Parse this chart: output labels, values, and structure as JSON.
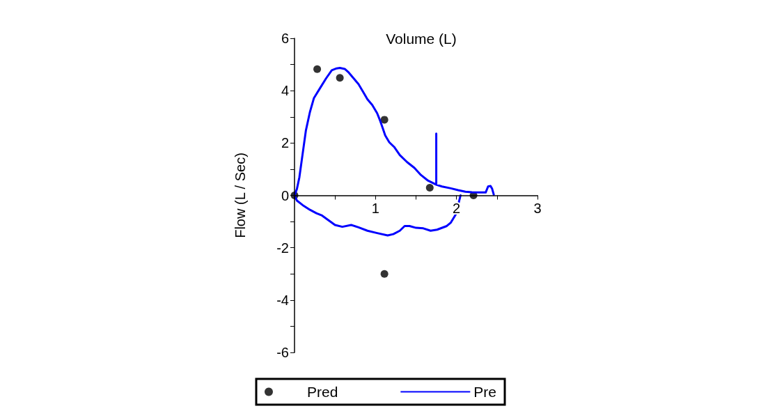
{
  "chart_data": {
    "type": "line",
    "xlabel": "Volume (L)",
    "ylabel": "Flow (L / Sec)",
    "xlim": [
      0,
      3
    ],
    "xticks": [
      {
        "value": 0,
        "label": null
      },
      {
        "value": 0.5,
        "label": null
      },
      1,
      {
        "value": 1.5,
        "label": null
      },
      2,
      {
        "value": 2.5,
        "label": null
      },
      3
    ],
    "ylim": [
      -6,
      6
    ],
    "yticks": [
      -6,
      {
        "value": -5,
        "label": null
      },
      -4,
      {
        "value": -3,
        "label": null
      },
      -2,
      {
        "value": -1,
        "label": null
      },
      0,
      {
        "value": 1,
        "label": null
      },
      2,
      {
        "value": 3,
        "label": null
      },
      4,
      {
        "value": 5,
        "label": null
      },
      6
    ],
    "legend": "bottom",
    "series": [
      {
        "name": "Pred",
        "type": "scatter",
        "marker": "circle",
        "color": "#000000",
        "x": [
          0,
          0.28,
          0.56,
          1.11,
          1.67,
          2.21,
          1.11
        ],
        "values": [
          0,
          4.82,
          4.49,
          2.89,
          0.29,
          0,
          -3
        ]
      },
      {
        "name": "Pre",
        "marker": "none",
        "line_style": "solid",
        "color": "#0000ff",
        "x": [
          2.05,
          2.02,
          1.99,
          1.93,
          1.88,
          1.76,
          1.68,
          1.59,
          1.5,
          1.42,
          1.36,
          1.3,
          1.22,
          1.15,
          1.02,
          0.9,
          0.79,
          0.7,
          0.59,
          0.5,
          0.42,
          0.34,
          0.27,
          0.19,
          0.1,
          0.03,
          0,
          0.03,
          0.06,
          0.1,
          0.14,
          0.19,
          0.24,
          0.32,
          0.39,
          0.46,
          0.52,
          0.56,
          0.62,
          0.67,
          0.73,
          0.79,
          0.85,
          0.9,
          0.96,
          1.02,
          1.06,
          1.09,
          1.12,
          1.17,
          1.23,
          1.3,
          1.39,
          1.48,
          1.56,
          1.65,
          1.75,
          1.75,
          1.75,
          1.82,
          1.93,
          2.02,
          2.11,
          2.19,
          2.28,
          2.36,
          2.39,
          2.42,
          2.44,
          2.46
        ],
        "values": [
          0,
          -0.37,
          -0.73,
          -1.04,
          -1.17,
          -1.31,
          -1.35,
          -1.26,
          -1.24,
          -1.17,
          -1.17,
          -1.35,
          -1.48,
          -1.53,
          -1.44,
          -1.35,
          -1.22,
          -1.13,
          -1.2,
          -1.13,
          -0.95,
          -0.77,
          -0.68,
          -0.55,
          -0.37,
          -0.2,
          0,
          0.25,
          0.69,
          1.58,
          2.47,
          3.18,
          3.72,
          4.12,
          4.47,
          4.78,
          4.85,
          4.87,
          4.83,
          4.69,
          4.47,
          4.25,
          3.94,
          3.67,
          3.45,
          3.14,
          2.83,
          2.56,
          2.29,
          2.03,
          1.85,
          1.54,
          1.27,
          1.05,
          0.78,
          0.56,
          0.41,
          2.36,
          0.41,
          0.34,
          0.27,
          0.2,
          0.14,
          0.12,
          0.11,
          0.11,
          0.34,
          0.36,
          0.25,
          0.03
        ]
      }
    ]
  }
}
